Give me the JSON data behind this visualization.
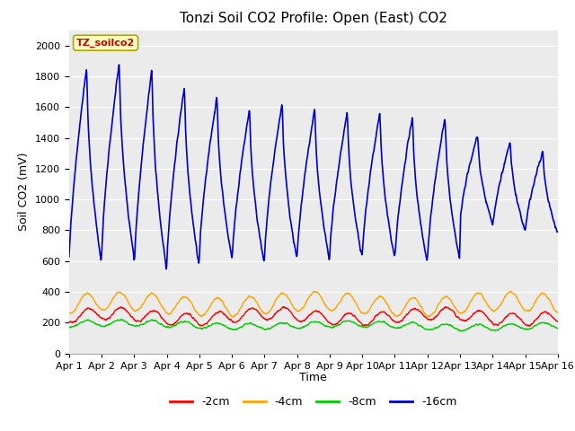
{
  "title": "Tonzi Soil CO2 Profile: Open (East) CO2",
  "ylabel": "Soil CO2 (mV)",
  "xlabel": "Time",
  "watermark": "TZ_soilco2",
  "ylim": [
    0,
    2100
  ],
  "yticks": [
    0,
    200,
    400,
    600,
    800,
    1000,
    1200,
    1400,
    1600,
    1800,
    2000
  ],
  "xtick_labels": [
    "Apr 1",
    "Apr 2",
    "Apr 3",
    "Apr 4",
    "Apr 5",
    "Apr 6",
    "Apr 7",
    "Apr 8",
    "Apr 9",
    "Apr 10",
    "Apr 11",
    "Apr 12",
    "Apr 13",
    "Apr 14",
    "Apr 15",
    "Apr 16"
  ],
  "colors": {
    "2cm": "#ff0000",
    "4cm": "#ffa500",
    "8cm": "#00cc00",
    "16cm": "#0000cc"
  },
  "legend_labels": [
    "-2cm",
    "-4cm",
    "-8cm",
    "-16cm"
  ],
  "fig_bg_color": "#ffffff",
  "plot_bg_color": "#ebebeb",
  "title_fontsize": 11,
  "label_fontsize": 9,
  "tick_fontsize": 8
}
